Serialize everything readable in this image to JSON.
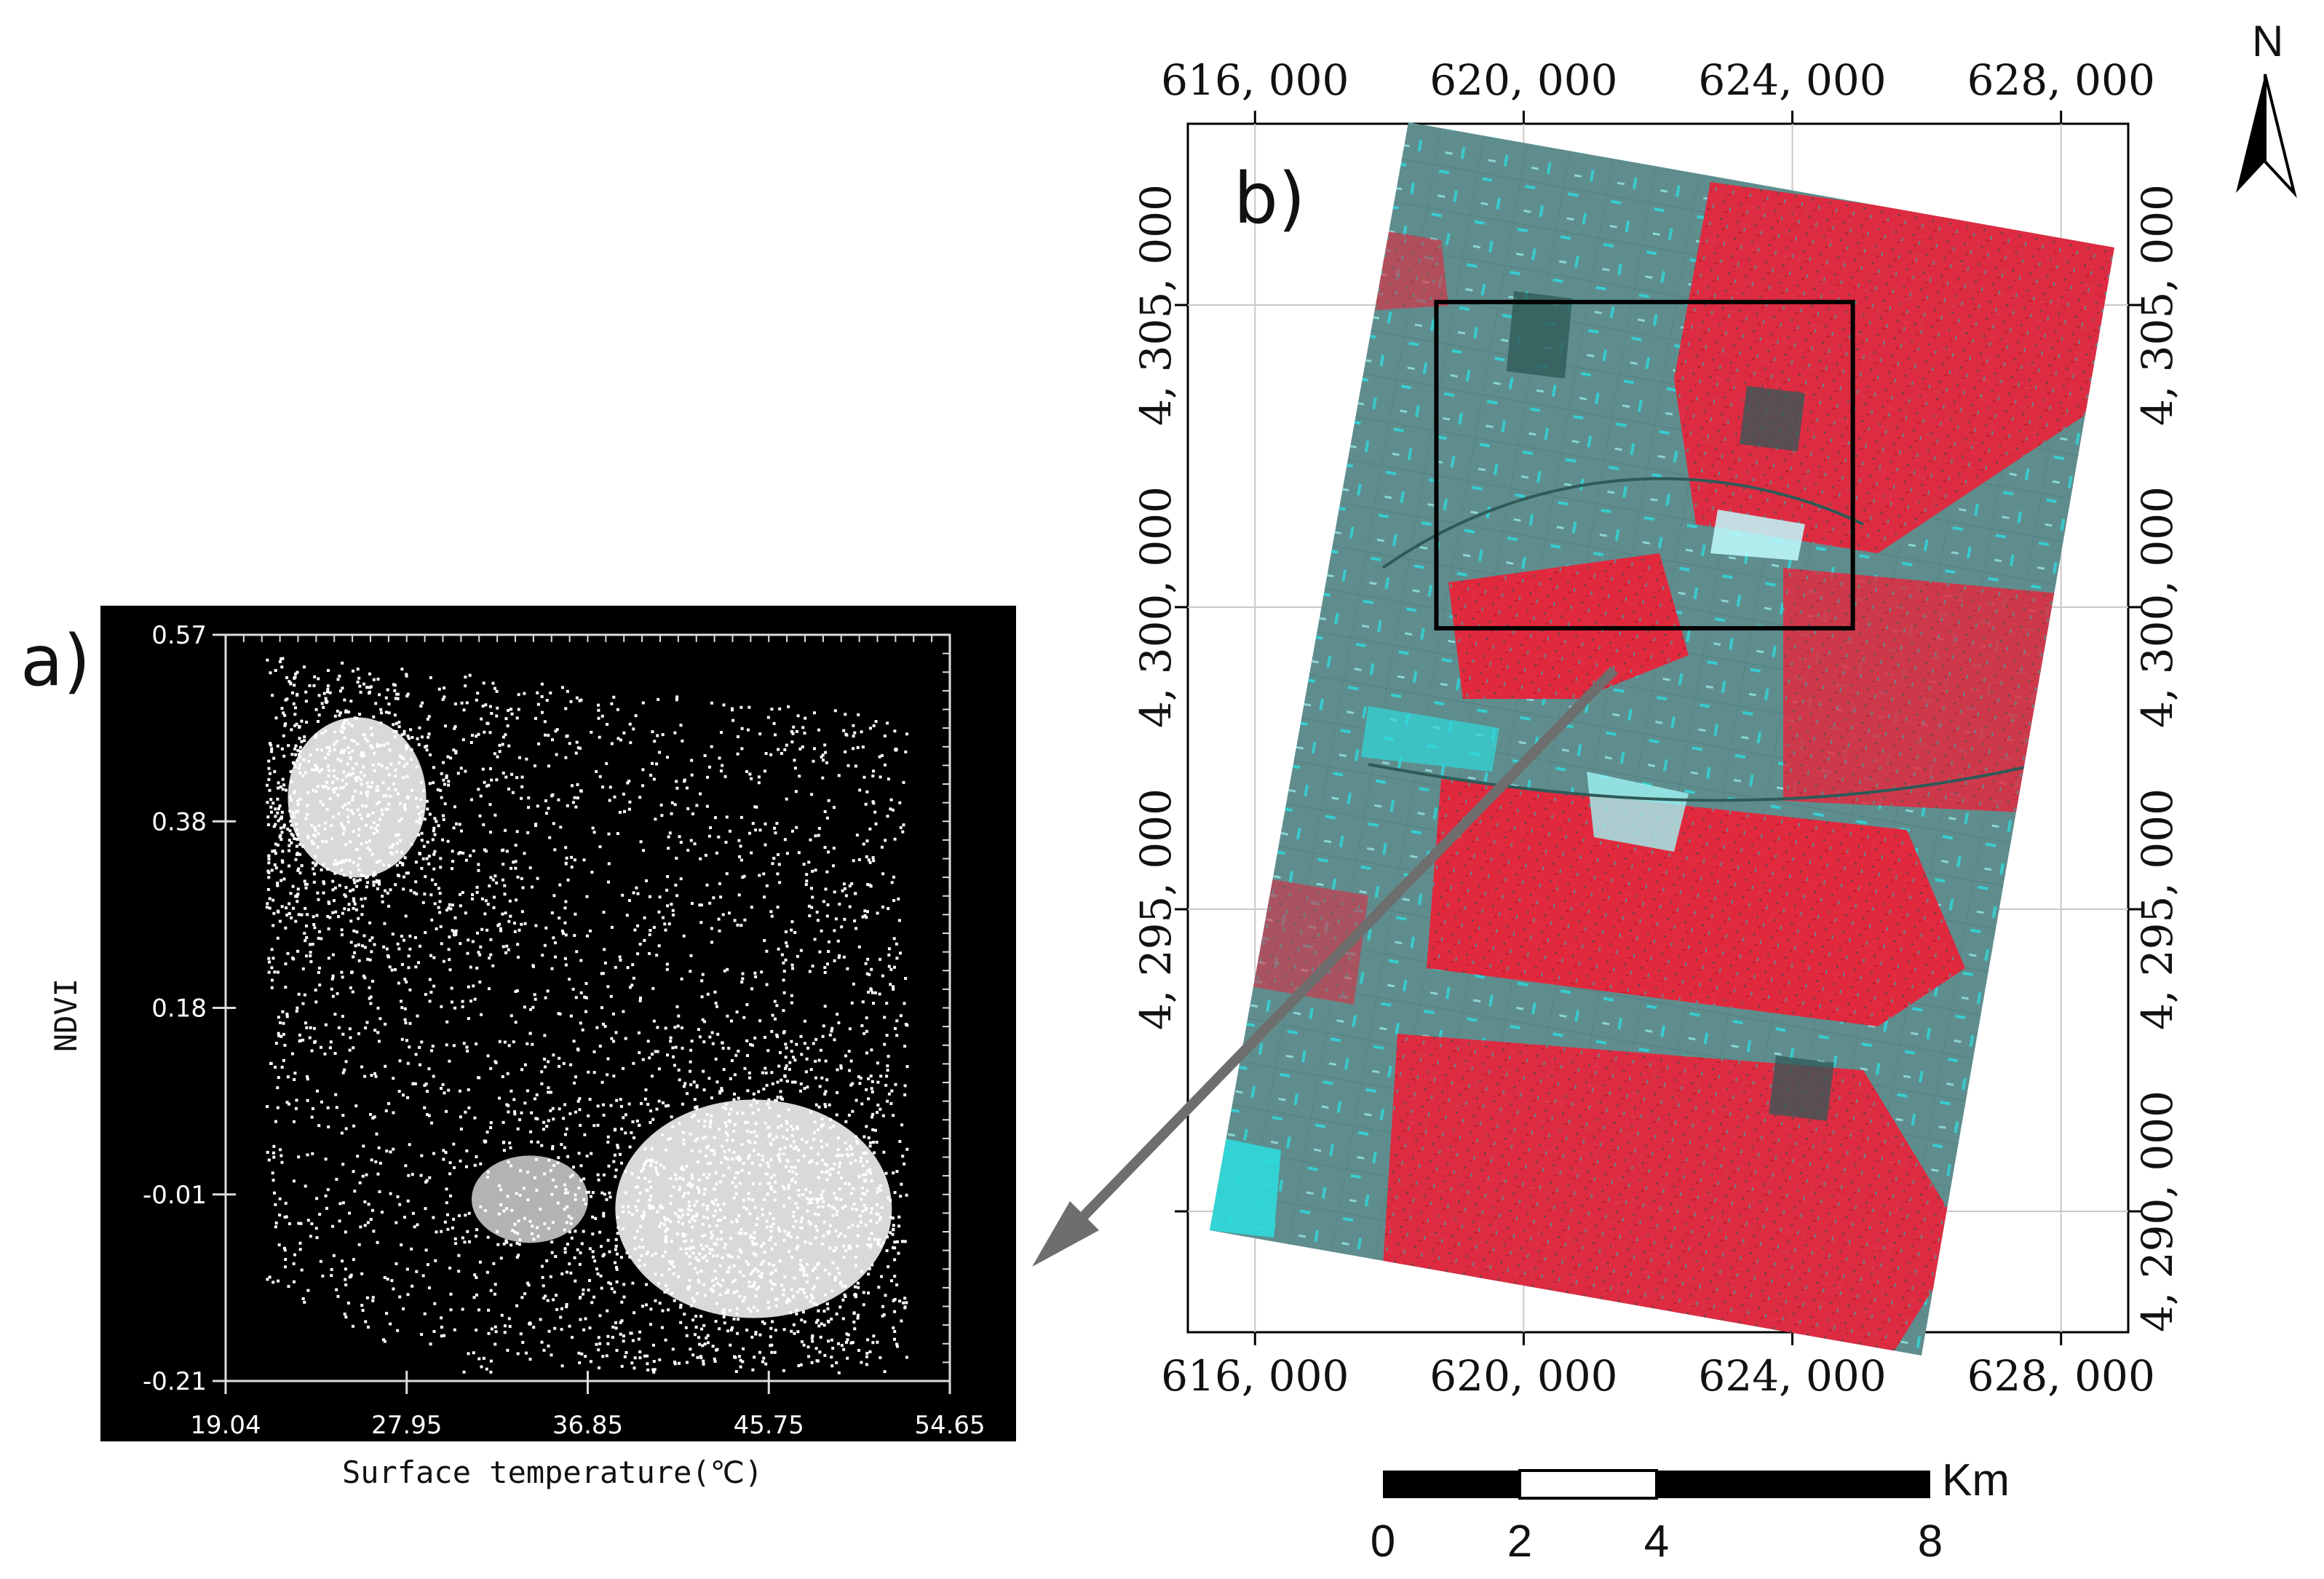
{
  "panel_a": {
    "label": "a)",
    "chart_data": {
      "type": "scatter",
      "title": "",
      "xlabel": "Surface temperature(℃)",
      "ylabel": "NDVI",
      "x_ticks": [
        "19.04",
        "27.95",
        "36.85",
        "45.75",
        "54.65"
      ],
      "y_ticks": [
        "0.57",
        "0.38",
        "0.18",
        "-0.01",
        "-0.21"
      ],
      "xlim": [
        19.04,
        54.65
      ],
      "ylim": [
        -0.21,
        0.57
      ],
      "description_points": [
        {
          "x": 24.0,
          "y": 0.5
        },
        {
          "x": 28.0,
          "y": 0.4
        },
        {
          "x": 40.0,
          "y": 0.02
        },
        {
          "x": 50.0,
          "y": -0.12
        },
        {
          "x": 52.0,
          "y": 0.45
        },
        {
          "x": 34.0,
          "y": -0.15
        }
      ],
      "background": "#000000",
      "point_color": "#ffffff"
    }
  },
  "panel_b": {
    "label": "b)",
    "top_ticks": [
      "616, 000",
      "620, 000",
      "624, 000",
      "628, 000"
    ],
    "bottom_ticks": [
      "616, 000",
      "620, 000",
      "624, 000",
      "628, 000"
    ],
    "left_ticks": [
      "4, 305, 000",
      "4, 300, 000",
      "4, 295, 000"
    ],
    "right_ticks": [
      "4, 305, 000",
      "4, 300, 000",
      "4, 295, 000",
      "4, 290, 000"
    ],
    "x_range_m": [
      615000,
      629000
    ],
    "y_range_m": [
      4288000,
      4308000
    ],
    "study_box": {
      "x": [
        618700,
        624900
      ],
      "y": [
        4299650,
        4305050
      ]
    },
    "colors": {
      "red": "#e8243a",
      "cyan": "#2fd9dc",
      "gray": "#5f8d8e",
      "dark": "#2e5a58"
    }
  },
  "north_arrow": {
    "letter": "N"
  },
  "scale_bar": {
    "unit": "Km",
    "labels": [
      "0",
      "2",
      "4",
      "8"
    ]
  },
  "colors": {
    "arrow": "#6e6e6e",
    "frame": "#000000"
  }
}
